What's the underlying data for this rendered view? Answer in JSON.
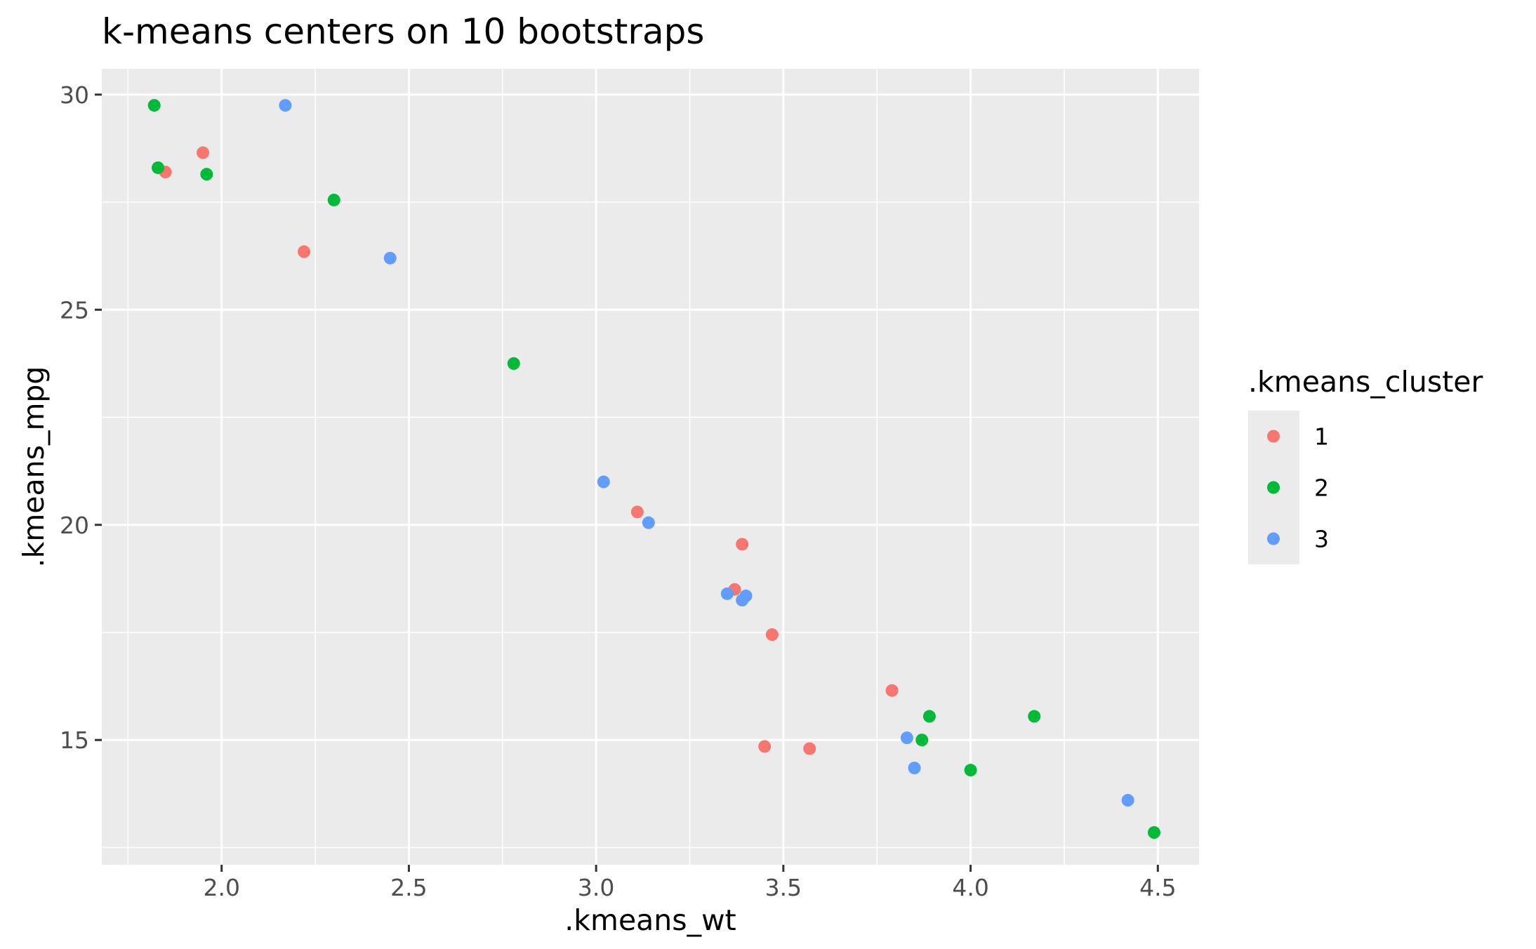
{
  "chart_data": {
    "type": "scatter",
    "title": "k-means centers on 10 bootstraps",
    "xlabel": ".kmeans_wt",
    "ylabel": ".kmeans_mpg",
    "xlim": [
      1.68,
      4.61
    ],
    "ylim": [
      12.1,
      30.6
    ],
    "xticks": [
      2.0,
      2.5,
      3.0,
      3.5,
      4.0,
      4.5
    ],
    "xtick_labels": [
      "2.0",
      "2.5",
      "3.0",
      "3.5",
      "4.0",
      "4.5"
    ],
    "yticks": [
      15,
      20,
      25,
      30
    ],
    "ytick_labels": [
      "15",
      "20",
      "25",
      "30"
    ],
    "grid": true,
    "legend": {
      "title": ".kmeans_cluster",
      "position": "right"
    },
    "series": [
      {
        "name": "1",
        "color": "#F8766D",
        "points": [
          {
            "x": 1.85,
            "y": 28.2
          },
          {
            "x": 1.95,
            "y": 28.65
          },
          {
            "x": 2.22,
            "y": 26.35
          },
          {
            "x": 3.11,
            "y": 20.3
          },
          {
            "x": 3.39,
            "y": 19.55
          },
          {
            "x": 3.37,
            "y": 18.5
          },
          {
            "x": 3.47,
            "y": 17.45
          },
          {
            "x": 3.79,
            "y": 16.15
          },
          {
            "x": 3.45,
            "y": 14.85
          },
          {
            "x": 3.57,
            "y": 14.8
          }
        ]
      },
      {
        "name": "2",
        "color": "#00BA38",
        "points": [
          {
            "x": 1.82,
            "y": 29.75
          },
          {
            "x": 1.83,
            "y": 28.3
          },
          {
            "x": 1.96,
            "y": 28.15
          },
          {
            "x": 2.3,
            "y": 27.55
          },
          {
            "x": 2.78,
            "y": 23.75
          },
          {
            "x": 3.89,
            "y": 15.55
          },
          {
            "x": 3.87,
            "y": 15.0
          },
          {
            "x": 4.17,
            "y": 15.55
          },
          {
            "x": 4.0,
            "y": 14.3
          },
          {
            "x": 4.49,
            "y": 12.85
          }
        ]
      },
      {
        "name": "3",
        "color": "#619CFF",
        "points": [
          {
            "x": 2.17,
            "y": 29.75
          },
          {
            "x": 2.45,
            "y": 26.2
          },
          {
            "x": 3.02,
            "y": 21.0
          },
          {
            "x": 3.14,
            "y": 20.05
          },
          {
            "x": 3.35,
            "y": 18.4
          },
          {
            "x": 3.4,
            "y": 18.35
          },
          {
            "x": 3.39,
            "y": 18.25
          },
          {
            "x": 3.83,
            "y": 15.05
          },
          {
            "x": 3.85,
            "y": 14.35
          },
          {
            "x": 4.42,
            "y": 13.6
          }
        ]
      }
    ]
  }
}
